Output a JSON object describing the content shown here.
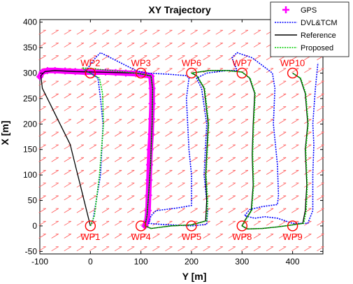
{
  "chart_data": {
    "type": "line",
    "title": "XY Trajectory",
    "xlabel": "Y [m]",
    "ylabel": "X [m]",
    "xlim": [
      -100,
      460
    ],
    "ylim": [
      -55,
      405
    ],
    "xticks": [
      -100,
      0,
      100,
      200,
      300,
      400
    ],
    "yticks": [
      -50,
      0,
      50,
      100,
      150,
      200,
      250,
      300,
      350,
      400
    ],
    "grid": false,
    "legend_position": "top-right",
    "legend": [
      {
        "label": "GPS",
        "color": "#ff00ff",
        "style": "plus"
      },
      {
        "label": "DVL&TCM",
        "color": "#0000ff",
        "style": "dotted"
      },
      {
        "label": "Reference",
        "color": "#000000",
        "style": "solid"
      },
      {
        "label": "Proposed",
        "color": "#00cc00",
        "style": "dotted"
      }
    ],
    "waypoints": [
      {
        "name": "WP1",
        "x": 0,
        "y": 0
      },
      {
        "name": "WP2",
        "x": 0,
        "y": 300
      },
      {
        "name": "WP3",
        "x": 100,
        "y": 300
      },
      {
        "name": "WP4",
        "x": 100,
        "y": 0
      },
      {
        "name": "WP5",
        "x": 200,
        "y": 0
      },
      {
        "name": "WP6",
        "x": 200,
        "y": 300
      },
      {
        "name": "WP7",
        "x": 300,
        "y": 300
      },
      {
        "name": "WP8",
        "x": 300,
        "y": 0
      },
      {
        "name": "WP9",
        "x": 400,
        "y": 0
      },
      {
        "name": "WP10",
        "x": 400,
        "y": 300
      }
    ],
    "series": [
      {
        "name": "GPS",
        "color": "#ff00ff",
        "points": [
          [
            -100,
            293
          ],
          [
            -95,
            302
          ],
          [
            -85,
            305
          ],
          [
            -70,
            305
          ],
          [
            -50,
            304
          ],
          [
            -30,
            303
          ],
          [
            -10,
            302
          ],
          [
            10,
            302
          ],
          [
            30,
            302
          ],
          [
            50,
            301
          ],
          [
            70,
            300
          ],
          [
            90,
            299
          ],
          [
            108,
            297
          ],
          [
            120,
            294
          ],
          [
            122,
            270
          ],
          [
            122,
            240
          ],
          [
            121,
            210
          ],
          [
            120,
            180
          ],
          [
            118,
            150
          ],
          [
            117,
            120
          ],
          [
            116,
            90
          ],
          [
            115,
            60
          ],
          [
            114,
            30
          ],
          [
            112,
            10
          ],
          [
            108,
            0
          ]
        ]
      },
      {
        "name": "DVL&TCM",
        "color": "#0000ff",
        "points": [
          [
            0,
            0
          ],
          [
            5,
            10
          ],
          [
            20,
            100
          ],
          [
            25,
            200
          ],
          [
            20,
            250
          ],
          [
            15,
            290
          ],
          [
            0,
            300
          ],
          [
            -10,
            305
          ],
          [
            -5,
            310
          ],
          [
            10,
            330
          ],
          [
            20,
            340
          ],
          [
            40,
            330
          ],
          [
            60,
            320
          ],
          [
            90,
            305
          ],
          [
            110,
            300
          ],
          [
            150,
            298
          ],
          [
            190,
            295
          ],
          [
            195,
            290
          ],
          [
            190,
            250
          ],
          [
            195,
            150
          ],
          [
            200,
            100
          ],
          [
            200,
            50
          ],
          [
            200,
            40
          ],
          [
            170,
            35
          ],
          [
            130,
            30
          ],
          [
            120,
            20
          ],
          [
            115,
            5
          ],
          [
            140,
            3
          ],
          [
            180,
            1
          ],
          [
            200,
            0
          ],
          [
            230,
            3
          ],
          [
            232,
            30
          ],
          [
            225,
            100
          ],
          [
            230,
            200
          ],
          [
            220,
            270
          ],
          [
            210,
            290
          ],
          [
            230,
            300
          ],
          [
            270,
            305
          ],
          [
            290,
            305
          ],
          [
            280,
            330
          ],
          [
            290,
            340
          ],
          [
            320,
            330
          ],
          [
            360,
            300
          ],
          [
            365,
            270
          ],
          [
            362,
            200
          ],
          [
            370,
            120
          ],
          [
            372,
            60
          ],
          [
            370,
            42
          ],
          [
            340,
            38
          ],
          [
            315,
            32
          ],
          [
            305,
            20
          ],
          [
            325,
            15
          ],
          [
            345,
            18
          ],
          [
            370,
            15
          ],
          [
            400,
            5
          ],
          [
            430,
            5
          ],
          [
            440,
            30
          ],
          [
            440,
            100
          ],
          [
            442,
            160
          ],
          [
            440,
            200
          ],
          [
            445,
            270
          ],
          [
            450,
            320
          ]
        ]
      },
      {
        "name": "Reference",
        "color": "#000000",
        "points": [
          [
            0,
            0
          ],
          [
            -10,
            40
          ],
          [
            -20,
            80
          ],
          [
            -30,
            120
          ],
          [
            -40,
            160
          ],
          [
            -60,
            200
          ],
          [
            -80,
            240
          ],
          [
            -95,
            270
          ],
          [
            -98,
            295
          ],
          [
            -90,
            303
          ],
          [
            -70,
            305
          ],
          [
            -30,
            303
          ],
          [
            10,
            302
          ],
          [
            50,
            301
          ],
          [
            90,
            300
          ],
          [
            108,
            297
          ],
          [
            120,
            294
          ],
          [
            123,
            270
          ],
          [
            122,
            200
          ],
          [
            119,
            120
          ],
          [
            115,
            60
          ],
          [
            112,
            20
          ],
          [
            108,
            0
          ],
          [
            120,
            -5
          ],
          [
            160,
            0
          ],
          [
            200,
            2
          ],
          [
            228,
            10
          ],
          [
            230,
            50
          ],
          [
            228,
            100
          ],
          [
            233,
            200
          ],
          [
            225,
            270
          ],
          [
            210,
            295
          ],
          [
            200,
            300
          ],
          [
            235,
            305
          ],
          [
            270,
            305
          ],
          [
            300,
            302
          ],
          [
            315,
            290
          ],
          [
            325,
            260
          ],
          [
            322,
            200
          ],
          [
            320,
            140
          ],
          [
            322,
            80
          ],
          [
            318,
            30
          ],
          [
            305,
            10
          ],
          [
            300,
            0
          ],
          [
            310,
            -6
          ],
          [
            340,
            -5
          ],
          [
            370,
            -2
          ],
          [
            400,
            2
          ],
          [
            420,
            5
          ],
          [
            425,
            30
          ],
          [
            428,
            80
          ],
          [
            425,
            150
          ],
          [
            430,
            200
          ],
          [
            425,
            260
          ],
          [
            415,
            290
          ],
          [
            400,
            300
          ]
        ]
      },
      {
        "name": "Proposed",
        "color": "#00cc00",
        "points": [
          [
            0,
            0
          ],
          [
            8,
            20
          ],
          [
            18,
            100
          ],
          [
            26,
            200
          ],
          [
            24,
            260
          ],
          [
            18,
            290
          ],
          [
            0,
            300
          ],
          [
            -10,
            304
          ],
          [
            -15,
            310
          ],
          [
            10,
            308
          ],
          [
            50,
            304
          ],
          [
            90,
            300
          ],
          [
            108,
            297
          ],
          [
            120,
            294
          ],
          [
            123,
            270
          ],
          [
            122,
            200
          ],
          [
            119,
            120
          ],
          [
            115,
            60
          ],
          [
            112,
            20
          ],
          [
            108,
            0
          ],
          [
            120,
            -5
          ],
          [
            160,
            0
          ],
          [
            200,
            2
          ],
          [
            230,
            10
          ],
          [
            232,
            50
          ],
          [
            229,
            100
          ],
          [
            234,
            200
          ],
          [
            226,
            270
          ],
          [
            212,
            293
          ],
          [
            200,
            300
          ],
          [
            236,
            305
          ],
          [
            270,
            305
          ],
          [
            300,
            302
          ],
          [
            316,
            290
          ],
          [
            326,
            260
          ],
          [
            323,
            200
          ],
          [
            321,
            140
          ],
          [
            323,
            80
          ],
          [
            319,
            30
          ],
          [
            306,
            10
          ],
          [
            300,
            0
          ],
          [
            312,
            -6
          ],
          [
            340,
            -5
          ],
          [
            370,
            -2
          ],
          [
            400,
            2
          ],
          [
            422,
            5
          ],
          [
            427,
            30
          ],
          [
            429,
            80
          ],
          [
            426,
            150
          ],
          [
            431,
            200
          ],
          [
            426,
            260
          ],
          [
            416,
            290
          ],
          [
            400,
            300
          ]
        ]
      }
    ]
  }
}
